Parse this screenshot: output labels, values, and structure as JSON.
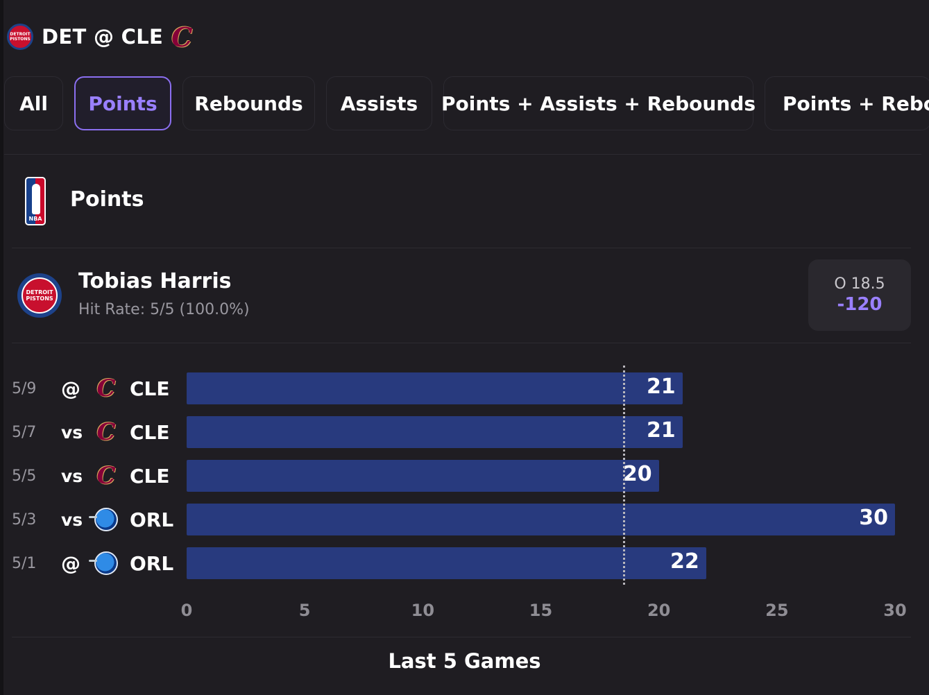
{
  "header": {
    "matchup": "DET @ CLE",
    "away_logo_text": "DETROIT PISTONS",
    "home_logo_icon": "cavaliers-c-icon"
  },
  "tabs": [
    {
      "label": "All",
      "active": false
    },
    {
      "label": "Points",
      "active": true
    },
    {
      "label": "Rebounds",
      "active": false
    },
    {
      "label": "Assists",
      "active": false
    },
    {
      "label": "Points + Assists + Rebounds",
      "active": false
    },
    {
      "label": "Points + Rebou",
      "active": false
    }
  ],
  "market": {
    "title": "Points",
    "league_icon": "nba-logo-icon"
  },
  "player": {
    "name": "Tobias Harris",
    "hit_rate": "Hit Rate: 5/5 (100.0%)",
    "line": "O 18.5",
    "odds": "-120"
  },
  "colors": {
    "accent": "#9a80ff",
    "bar": "#283a7e",
    "background": "#1f1d22"
  },
  "chart_data": {
    "type": "bar",
    "orientation": "horizontal",
    "categories": [
      "5/9 @ CLE",
      "5/7 vs CLE",
      "5/5 vs CLE",
      "5/3 vs ORL",
      "5/1 @ ORL"
    ],
    "rows": [
      {
        "date": "5/9",
        "home_away": "@",
        "opponent": "CLE",
        "value": 21
      },
      {
        "date": "5/7",
        "home_away": "vs",
        "opponent": "CLE",
        "value": 21
      },
      {
        "date": "5/5",
        "home_away": "vs",
        "opponent": "CLE",
        "value": 20
      },
      {
        "date": "5/3",
        "home_away": "vs",
        "opponent": "ORL",
        "value": 30
      },
      {
        "date": "5/1",
        "home_away": "@",
        "opponent": "ORL",
        "value": 22
      }
    ],
    "values": [
      21,
      21,
      20,
      30,
      22
    ],
    "xlim": [
      0,
      30
    ],
    "ticks": [
      "0",
      "5",
      "10",
      "15",
      "20",
      "25",
      "30"
    ],
    "reference_line": 18.5,
    "xlabel": "Last 5 Games",
    "grid": false
  }
}
